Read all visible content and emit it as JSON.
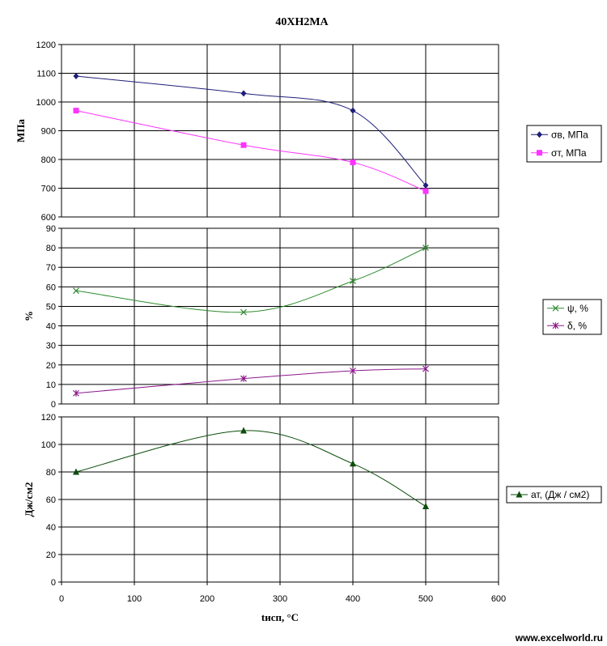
{
  "watermark": "www.excelworld.ru",
  "chart_data": {
    "type": "line",
    "title": "40ХН2МА",
    "xlabel": "tисп, °С",
    "xlim": [
      0,
      600
    ],
    "xticks": [
      0,
      100,
      200,
      300,
      400,
      500,
      600
    ],
    "grid": true,
    "legend_position": "right",
    "panels": [
      {
        "ylabel": "МПа",
        "ylim": [
          600,
          1200
        ],
        "yticks": [
          600,
          700,
          800,
          900,
          1000,
          1100,
          1200
        ],
        "series": [
          {
            "name": "σв, МПа",
            "color": "#1f1f7a",
            "marker": "diamond",
            "x": [
              20,
              250,
              400,
              500
            ],
            "y": [
              1090,
              1030,
              970,
              710
            ]
          },
          {
            "name": "σт, МПа",
            "color": "#ff33ff",
            "marker": "square",
            "x": [
              20,
              250,
              400,
              500
            ],
            "y": [
              970,
              850,
              790,
              690
            ]
          }
        ]
      },
      {
        "ylabel": "%",
        "ylim": [
          0,
          90
        ],
        "yticks": [
          0,
          10,
          20,
          30,
          40,
          50,
          60,
          70,
          80,
          90
        ],
        "series": [
          {
            "name": "ψ, %",
            "color": "#2e8b2e",
            "marker": "x",
            "x": [
              20,
              250,
              400,
              500
            ],
            "y": [
              58,
              47,
              63,
              80
            ]
          },
          {
            "name": "δ, %",
            "color": "#8b1a8b",
            "marker": "star",
            "x": [
              20,
              250,
              400,
              500
            ],
            "y": [
              5.5,
              13,
              17,
              18
            ]
          }
        ]
      },
      {
        "ylabel": "Дж/см2",
        "ylim": [
          0,
          120
        ],
        "yticks": [
          0,
          20,
          40,
          60,
          80,
          100,
          120
        ],
        "series": [
          {
            "name": "ат, (Дж / см2)",
            "color": "#0b4d0b",
            "marker": "triangle",
            "x": [
              20,
              250,
              400,
              500
            ],
            "y": [
              80,
              110,
              86,
              55
            ]
          }
        ]
      }
    ]
  }
}
